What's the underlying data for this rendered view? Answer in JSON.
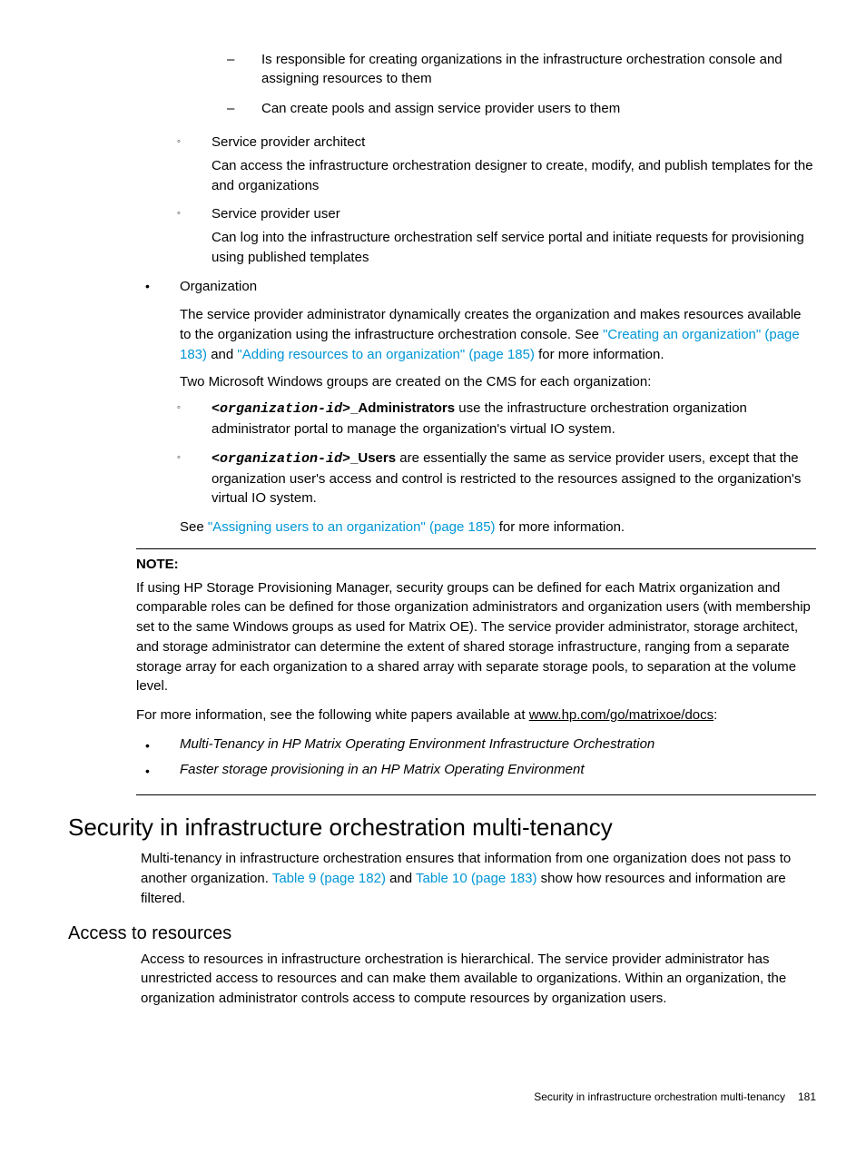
{
  "dash": {
    "item1": "Is responsible for creating organizations in the infrastructure orchestration console and assigning resources to them",
    "item2": "Can create pools and assign service provider users to them"
  },
  "circ1": {
    "title": "Service provider architect",
    "body": "Can access the infrastructure orchestration designer to create, modify, and publish templates for the and organizations"
  },
  "circ2": {
    "title": "Service provider user",
    "body": "Can log into the infrastructure orchestration self service portal and initiate requests for provisioning using published templates"
  },
  "org": {
    "title": "Organization",
    "p1a": "The service provider administrator dynamically creates the organization and makes resources available to the organization using the infrastructure orchestration console. See ",
    "link1": "\"Creating an organization\" (page 183)",
    "and": " and ",
    "link2": "\"Adding resources to an organization\" (page 185)",
    "p1b": " for more information.",
    "p2": "Two Microsoft Windows groups are created on the CMS for each organization:",
    "admins_code": "<organization-id>",
    "admins_bold": "_Administrators",
    "admins_rest": " use the infrastructure orchestration organization administrator portal to manage the organization's virtual IO system.",
    "users_code": "<organization-id>",
    "users_bold": "_Users",
    "users_rest": " are essentially the same as service provider users, except that the organization user's access and control is restricted to the resources assigned to the organization's virtual IO system.",
    "see_a": "See ",
    "see_link": "\"Assigning users to an organization\" (page 185)",
    "see_b": " for more information."
  },
  "note": {
    "label": "NOTE:",
    "p1": "If using HP Storage Provisioning Manager, security groups can be defined for each Matrix organization and comparable roles can be defined for those organization administrators and organization users (with membership set to the same Windows groups as used for Matrix OE). The service provider administrator, storage architect, and storage administrator can determine the extent of shared storage infrastructure, ranging from a separate storage array for each organization to a shared array with separate storage pools, to separation at the volume level.",
    "p2a": "For more information, see the following white papers available at ",
    "p2link": "www.hp.com/go/matrixoe/docs",
    "p2b": ":",
    "li1": "Multi-Tenancy in HP Matrix Operating Environment Infrastructure Orchestration",
    "li2": "Faster storage provisioning in an HP Matrix Operating Environment"
  },
  "h2": "Security in infrastructure orchestration multi-tenancy",
  "sec_p_a": "Multi-tenancy in infrastructure orchestration ensures that information from one organization does not pass to another organization. ",
  "sec_link1": "Table 9 (page 182)",
  "sec_and": " and ",
  "sec_link2": "Table 10 (page 183)",
  "sec_p_b": " show how resources and information are filtered.",
  "h3": "Access to resources",
  "acc_p": "Access to resources in infrastructure orchestration is hierarchical. The service provider administrator has unrestricted access to resources and can make them available to organizations. Within an organization, the organization administrator controls access to compute resources by organization users.",
  "footer": {
    "text": "Security in infrastructure orchestration multi-tenancy",
    "page": "181"
  }
}
